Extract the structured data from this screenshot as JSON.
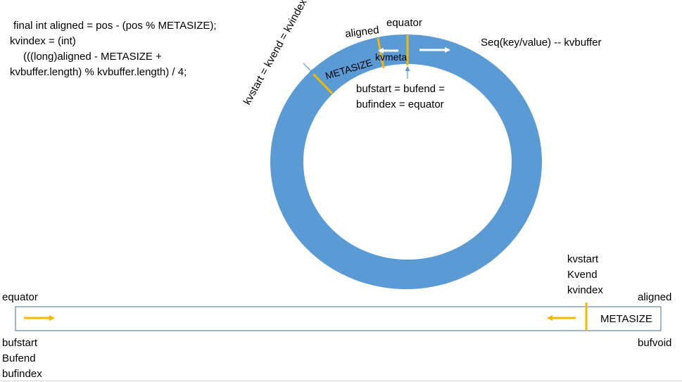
{
  "code": {
    "line1": "final int aligned = pos - (pos % METASIZE);",
    "line2": "kvindex = (int)",
    "line3": "(((long)aligned - METASIZE +",
    "line4": "kvbuffer.length) % kvbuffer.length) / 4;"
  },
  "ring": {
    "aligned_label": "aligned",
    "equator_label": "equator",
    "kv_label": "kvstart = kvend = kvindex",
    "metasize_label": "METASIZE",
    "kvmeta_label": "kvmeta",
    "bufstart_line1": "bufstart = bufend =",
    "bufstart_line2": "bufindex = equator",
    "seq_label": "Seq(key/value)  -- kvbuffer"
  },
  "linear": {
    "equator_label": "equator",
    "aligned_label": "aligned",
    "kvstart_label": "kvstart",
    "kvend_label": "Kvend",
    "kvindex_label": "kvindex",
    "metasize_label": "METASIZE",
    "bufstart_label": "bufstart",
    "bufend_label": "Bufend",
    "bufindex_label": "bufindex",
    "bufvoid_label": "bufvoid"
  },
  "colors": {
    "ring_fill": "#5b9bd5",
    "marker": "#f5b800",
    "arrow_white": "#ffffff",
    "box_border": "#41719c",
    "squiggle": "#d42020"
  }
}
